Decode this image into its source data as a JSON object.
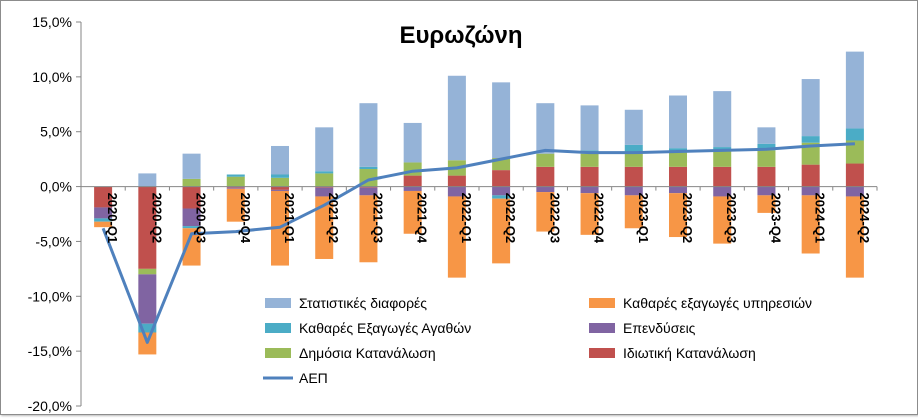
{
  "chart_data": {
    "type": "bar",
    "stacked": true,
    "title": "Ευρωζώνη",
    "xlabel": "",
    "ylabel": "",
    "ylim": [
      -0.2,
      0.15
    ],
    "ytick_values": [
      0.15,
      0.1,
      0.05,
      0.0,
      -0.05,
      -0.1,
      -0.15,
      -0.2
    ],
    "yticks": [
      "15,0%",
      "10,0%",
      "5,0%",
      "0,0%",
      "-5,0%",
      "-10,0%",
      "-15,0%",
      "-20,0%"
    ],
    "categories": [
      "2020-Q1",
      "2020-Q2",
      "2020-Q3",
      "2020-Q4",
      "2021-Q1",
      "2021-Q2",
      "2021-Q3",
      "2021-Q4",
      "2022-Q1",
      "2022-Q2",
      "2022-Q3",
      "2022-Q4",
      "2023-Q1",
      "2023-Q2",
      "2023-Q3",
      "2023-Q4",
      "2024-Q1",
      "2024-Q2"
    ],
    "grid": false,
    "legend_position": "bottom",
    "series": [
      {
        "name": "Ιδιωτική Κατανάλωση",
        "color": "#c0504d",
        "values": [
          -0.019,
          -0.075,
          -0.02,
          -0.001,
          -0.003,
          -0.001,
          -0.001,
          0.01,
          0.01,
          0.015,
          0.018,
          0.018,
          0.018,
          0.018,
          0.018,
          0.018,
          0.02,
          0.021
        ]
      },
      {
        "name": "Δημόσια Κατανάλωση",
        "color": "#9bbb59",
        "values": [
          0.0,
          -0.005,
          0.007,
          0.009,
          0.008,
          0.012,
          0.016,
          0.012,
          0.014,
          0.011,
          0.012,
          0.012,
          0.012,
          0.013,
          0.014,
          0.015,
          0.02,
          0.021
        ]
      },
      {
        "name": "Επενδύσεις",
        "color": "#8064a2",
        "values": [
          -0.01,
          -0.045,
          -0.016,
          -0.001,
          -0.001,
          -0.008,
          -0.007,
          -0.004,
          -0.009,
          -0.008,
          -0.005,
          -0.006,
          -0.008,
          -0.006,
          -0.009,
          -0.008,
          -0.008,
          -0.009
        ]
      },
      {
        "name": "Καθαρές Εξαγωγές Αγαθών",
        "color": "#4bacc6",
        "values": [
          -0.003,
          -0.008,
          -0.002,
          0.002,
          0.003,
          0.002,
          0.002,
          0.0,
          0.0,
          -0.003,
          0.0,
          0.003,
          0.008,
          0.004,
          0.004,
          0.006,
          0.006,
          0.011
        ]
      },
      {
        "name": "Καθαρές εξαγωγές υπηρεσιών",
        "color": "#f79646",
        "values": [
          -0.005,
          -0.02,
          -0.034,
          -0.03,
          -0.068,
          -0.057,
          -0.061,
          -0.039,
          -0.074,
          -0.059,
          -0.036,
          -0.038,
          -0.03,
          -0.04,
          -0.043,
          -0.016,
          -0.053,
          -0.074
        ]
      },
      {
        "name": "Στατιστικές διαφορές",
        "color": "#95b3d7",
        "values": [
          0.0,
          0.012,
          0.023,
          0.0,
          0.026,
          0.04,
          0.058,
          0.036,
          0.077,
          0.069,
          0.046,
          0.041,
          0.032,
          0.048,
          0.051,
          0.015,
          0.052,
          0.07
        ]
      }
    ],
    "line": {
      "name": "ΑΕΠ",
      "color": "#4f81bd",
      "values": [
        -0.038,
        -0.142,
        -0.043,
        -0.041,
        -0.037,
        -0.017,
        0.006,
        0.014,
        0.017,
        0.025,
        0.033,
        0.031,
        0.031,
        0.032,
        0.033,
        0.034,
        0.037,
        0.039
      ]
    },
    "legend_order": [
      "Στατιστικές διαφορές",
      "Καθαρές εξαγωγές υπηρεσιών",
      "Καθαρές Εξαγωγές Αγαθών",
      "Επενδύσεις",
      "Δημόσια Κατανάλωση",
      "Ιδιωτική Κατανάλωση",
      "ΑΕΠ"
    ]
  }
}
